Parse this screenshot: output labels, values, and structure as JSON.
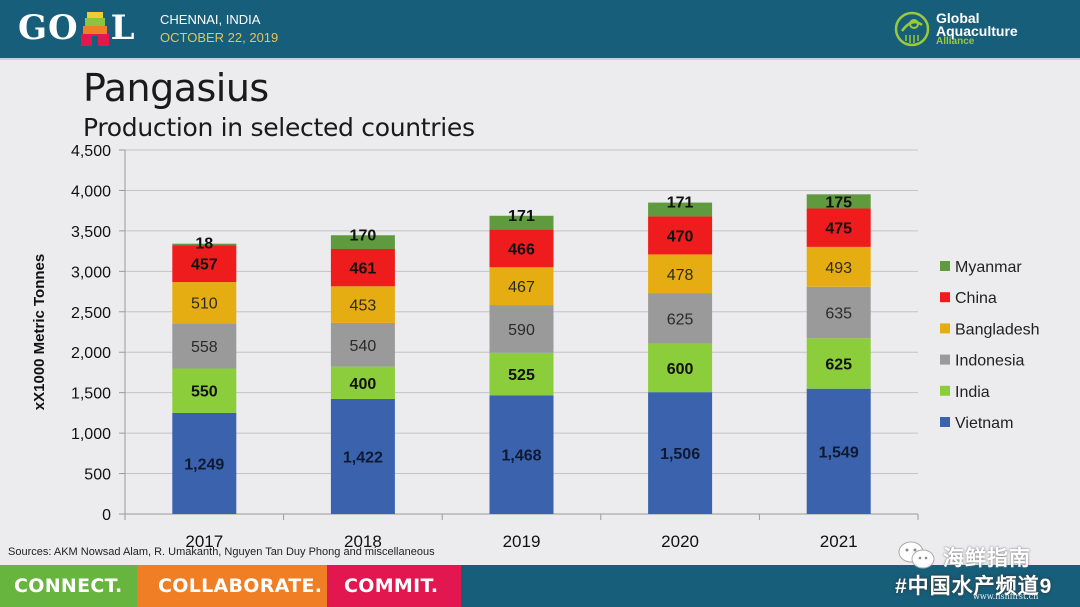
{
  "header": {
    "event_logo_text": [
      "G",
      "O",
      "L"
    ],
    "event_city": "CHENNAI, INDIA",
    "event_date": "OCTOBER 22, 2019",
    "org_logo_lines": [
      "Global",
      "Aquaculture",
      "Alliance"
    ]
  },
  "slide": {
    "title": "Pangasius",
    "subtitle": "Production in selected countries",
    "sources": "Sources: AKM Nowsad Alam, R. Umakanth, Nguyen Tan Duy Phong and miscellaneous"
  },
  "footer": {
    "connect": "CONNECT.",
    "collaborate": "COLLABORATE.",
    "commit": "COMMIT."
  },
  "watermark": {
    "top": "海鲜指南",
    "bottom": "#中国水产频道9",
    "url": "www.fishfirst.cn"
  },
  "chart_data": {
    "type": "bar",
    "stacked": true,
    "title": "Pangasius",
    "subtitle": "Production in selected countries",
    "xlabel": "",
    "ylabel": "xX1000 Metric Tonnes",
    "ylim": [
      0,
      4500
    ],
    "yticks": [
      0,
      500,
      1000,
      1500,
      2000,
      2500,
      3000,
      3500,
      4000,
      4500
    ],
    "ytick_labels": [
      "0",
      "500",
      "1,000",
      "1,500",
      "2,000",
      "2,500",
      "3,000",
      "3,500",
      "4,000",
      "4,500"
    ],
    "grid": true,
    "legend_position": "right",
    "categories": [
      "2017",
      "2018",
      "2019",
      "2020",
      "2021"
    ],
    "series": [
      {
        "name": "Vietnam",
        "color": "#3a62ad",
        "values": [
          1249,
          1422,
          1468,
          1506,
          1549
        ],
        "labels": [
          "1,249",
          "1,422",
          "1,468",
          "1,506",
          "1,549"
        ],
        "label_bold": true
      },
      {
        "name": "India",
        "color": "#8ccd3c",
        "values": [
          550,
          400,
          525,
          600,
          625
        ],
        "labels": [
          "550",
          "400",
          "525",
          "600",
          "625"
        ],
        "label_bold": true
      },
      {
        "name": "Indonesia",
        "color": "#9a9a9a",
        "values": [
          558,
          540,
          590,
          625,
          635
        ],
        "labels": [
          "558",
          "540",
          "590",
          "625",
          "635"
        ],
        "label_bold": false
      },
      {
        "name": "Bangladesh",
        "color": "#e6ad12",
        "values": [
          510,
          453,
          467,
          478,
          493
        ],
        "labels": [
          "510",
          "453",
          "467",
          "478",
          "493"
        ],
        "label_bold": false
      },
      {
        "name": "China",
        "color": "#ee1c1c",
        "values": [
          457,
          461,
          466,
          470,
          475
        ],
        "labels": [
          "457",
          "461",
          "466",
          "470",
          "475"
        ],
        "label_bold": true
      },
      {
        "name": "Myanmar",
        "color": "#5f9a3e",
        "values": [
          18,
          170,
          171,
          171,
          175
        ],
        "labels": [
          "18",
          "170",
          "171",
          "171",
          "175"
        ],
        "label_bold": true
      }
    ],
    "legend_order": [
      "Myanmar",
      "China",
      "Bangladesh",
      "Indonesia",
      "India",
      "Vietnam"
    ]
  }
}
